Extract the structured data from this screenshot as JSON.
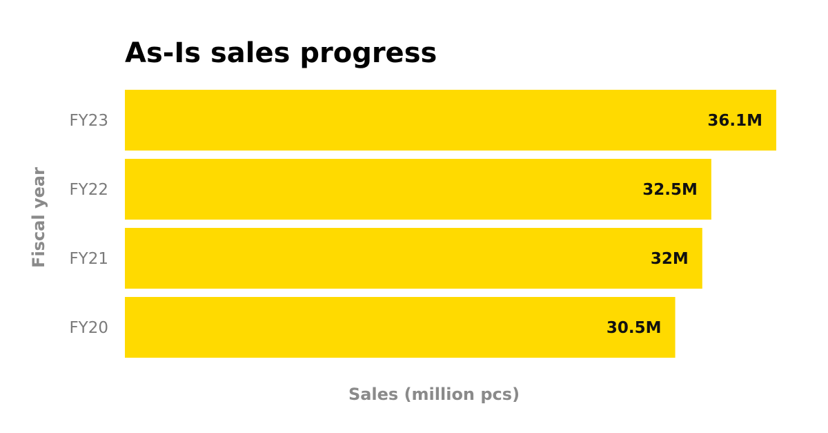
{
  "chart_data": {
    "type": "bar",
    "orientation": "horizontal",
    "title": "As-Is sales progress",
    "xlabel": "Sales (million pcs)",
    "ylabel": "Fiscal year",
    "categories": [
      "FY23",
      "FY22",
      "FY21",
      "FY20"
    ],
    "values": [
      36.1,
      32.5,
      32,
      30.5
    ],
    "value_labels": [
      "36.1M",
      "32.5M",
      "32M",
      "30.5M"
    ],
    "xlim": [
      0,
      36.1
    ],
    "grid": false,
    "legend": "none",
    "bar_color": "#FFDA00"
  }
}
